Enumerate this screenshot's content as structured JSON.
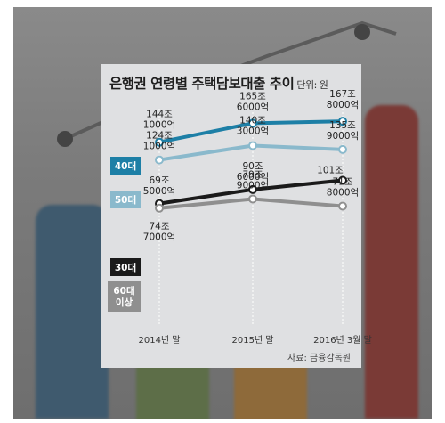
{
  "title": "은행권 연령별 주택담보대출 추이",
  "unit": "단위: 원",
  "source": "자료: 금융감독원",
  "chart_data": {
    "type": "line",
    "title": "은행권 연령별 주택담보대출 추이",
    "unit": "단위: 원",
    "categories": [
      "2014년 말",
      "2015년 말",
      "2016년 3월 말"
    ],
    "ylim": [
      0,
      200
    ],
    "grid": false,
    "series": [
      {
        "name": "40대",
        "color": "#1d7fa6",
        "values": [
          144.1,
          165.6,
          167.8
        ],
        "labels": [
          [
            "144조",
            "1000억"
          ],
          [
            "165조",
            "6000억"
          ],
          [
            "167조",
            "8000억"
          ]
        ]
      },
      {
        "name": "50대",
        "color": "#8ab9cc",
        "values": [
          124.1,
          140.3,
          135.9
        ],
        "labels": [
          [
            "124조",
            "1000억"
          ],
          [
            "140조",
            "3000억"
          ],
          [
            "135조",
            "9000억"
          ]
        ]
      },
      {
        "name": "30대",
        "color": "#1a1a1a",
        "values": [
          74.7,
          90.6,
          101
        ],
        "labels": [
          [
            "74조",
            "7000억"
          ],
          [
            "90조",
            "6000억"
          ],
          [
            "101조"
          ]
        ]
      },
      {
        "name": "60대 이상",
        "color": "#8f8f8f",
        "values": [
          69.5,
          79.9,
          71.8
        ],
        "labels": [
          [
            "69조",
            "5000억"
          ],
          [
            "79조",
            "9000억"
          ],
          [
            "71조",
            "8000억"
          ]
        ]
      }
    ]
  }
}
